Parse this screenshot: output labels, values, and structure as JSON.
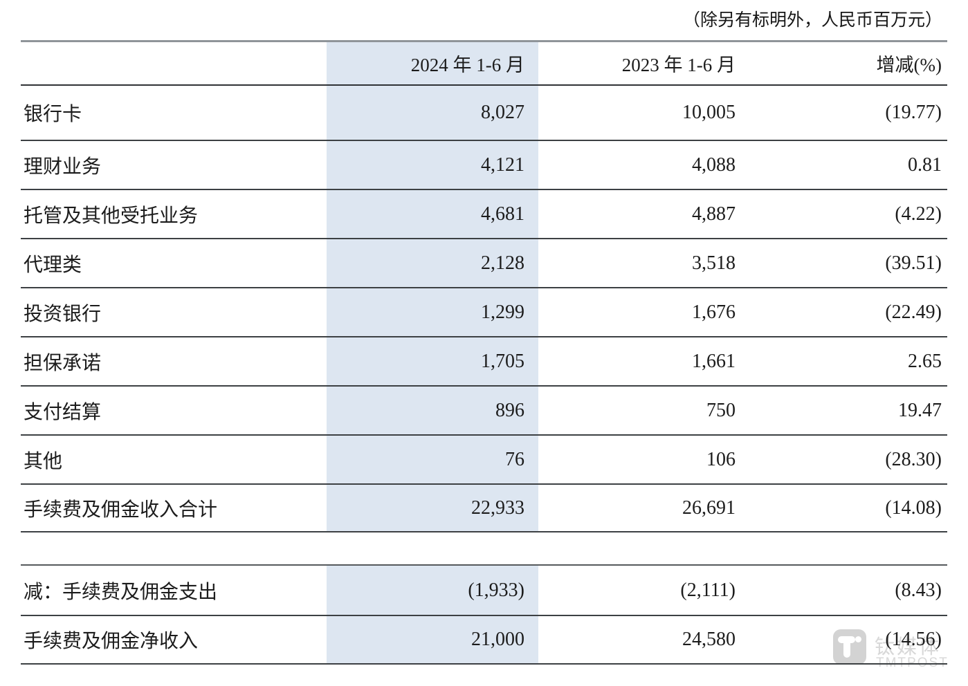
{
  "meta": {
    "unit_note": "（除另有标明外，人民币百万元）"
  },
  "colors": {
    "highlight_band": "#dde6f1",
    "rule_dark": "#3c4043",
    "rule_gray": "#8f9499"
  },
  "table": {
    "header": {
      "col_2024": "2024 年 1-6 月",
      "col_2023": "2023 年 1-6 月",
      "col_change": "增减(%)"
    },
    "rows": [
      {
        "label": "银行卡",
        "v2024": "8,027",
        "v2023": "10,005",
        "change": "(19.77)"
      },
      {
        "label": "理财业务",
        "v2024": "4,121",
        "v2023": "4,088",
        "change": "0.81"
      },
      {
        "label": "托管及其他受托业务",
        "v2024": "4,681",
        "v2023": "4,887",
        "change": "(4.22)"
      },
      {
        "label": "代理类",
        "v2024": "2,128",
        "v2023": "3,518",
        "change": "(39.51)"
      },
      {
        "label": "投资银行",
        "v2024": "1,299",
        "v2023": "1,676",
        "change": "(22.49)"
      },
      {
        "label": "担保承诺",
        "v2024": "1,705",
        "v2023": "1,661",
        "change": "2.65"
      },
      {
        "label": "支付结算",
        "v2024": "896",
        "v2023": "750",
        "change": "19.47"
      },
      {
        "label": "其他",
        "v2024": "76",
        "v2023": "106",
        "change": "(28.30)"
      },
      {
        "label": "手续费及佣金收入合计",
        "v2024": "22,933",
        "v2023": "26,691",
        "change": "(14.08)"
      }
    ],
    "section2": [
      {
        "label": "减：手续费及佣金支出",
        "v2024": "(1,933)",
        "v2023": "(2,111)",
        "change": "(8.43)"
      },
      {
        "label": "手续费及佣金净收入",
        "v2024": "21,000",
        "v2023": "24,580",
        "change": "(14.56)"
      }
    ]
  },
  "watermark": {
    "name": "钛媒体",
    "brand": "TMTPOST"
  }
}
